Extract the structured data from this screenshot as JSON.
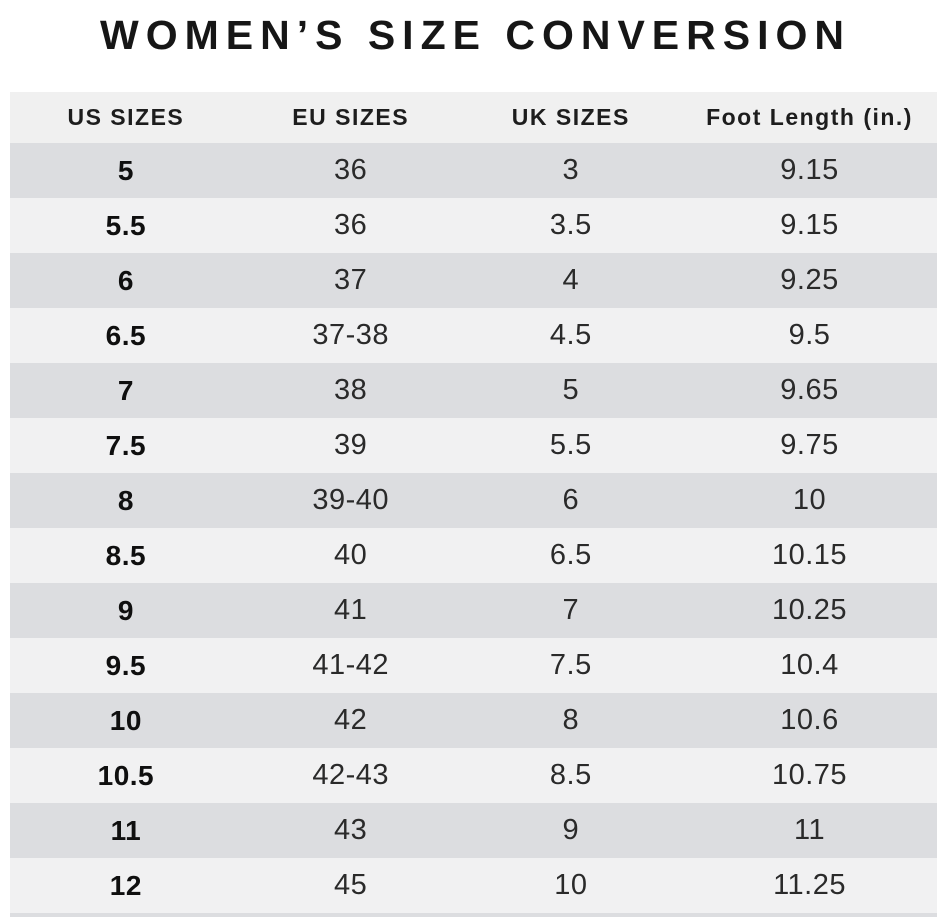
{
  "chart_data": {
    "type": "table",
    "title": "WOMEN’S SIZE CONVERSION",
    "columns": [
      "US SIZES",
      "EU SIZES",
      "UK SIZES",
      "Foot Length (in.)"
    ],
    "rows": [
      [
        "5",
        "36",
        "3",
        "9.15"
      ],
      [
        "5.5",
        "36",
        "3.5",
        "9.15"
      ],
      [
        "6",
        "37",
        "4",
        "9.25"
      ],
      [
        "6.5",
        "37-38",
        "4.5",
        "9.5"
      ],
      [
        "7",
        "38",
        "5",
        "9.65"
      ],
      [
        "7.5",
        "39",
        "5.5",
        "9.75"
      ],
      [
        "8",
        "39-40",
        "6",
        "10"
      ],
      [
        "8.5",
        "40",
        "6.5",
        "10.15"
      ],
      [
        "9",
        "41",
        "7",
        "10.25"
      ],
      [
        "9.5",
        "41-42",
        "7.5",
        "10.4"
      ],
      [
        "10",
        "42",
        "8",
        "10.6"
      ],
      [
        "10.5",
        "42-43",
        "8.5",
        "10.75"
      ],
      [
        "11",
        "43",
        "9",
        "11"
      ],
      [
        "12",
        "45",
        "10",
        "11.25"
      ]
    ],
    "layout": {
      "row_striping": "alternating, first data row dark",
      "legend": "none",
      "grid": "off"
    }
  },
  "colors": {
    "row_dark": "#dcdde0",
    "row_light": "#f1f1f2",
    "header_bg": "#f0f0f0",
    "title_text": "#161616",
    "cell_text": "#2a2a2a",
    "page_bg": "#ffffff"
  }
}
